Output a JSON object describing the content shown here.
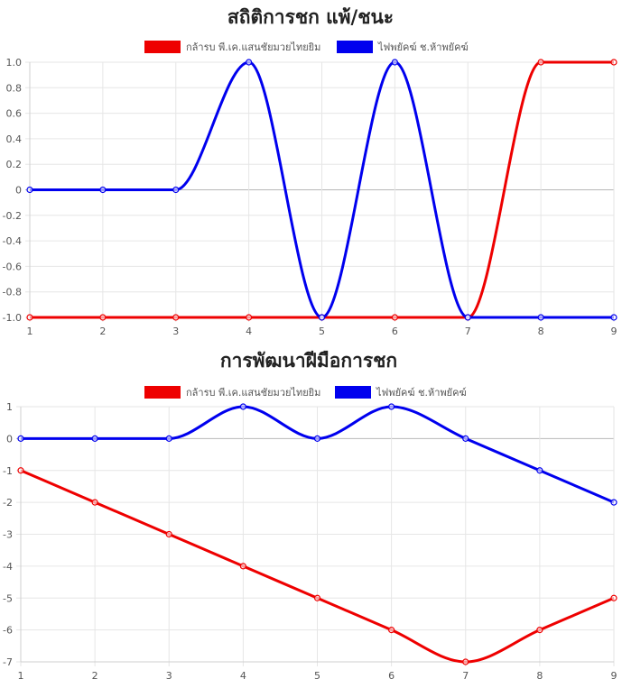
{
  "chart_data": [
    {
      "type": "line",
      "title": "สถิติการชก แพ้/ชนะ",
      "x": [
        1,
        2,
        3,
        4,
        5,
        6,
        7,
        8,
        9
      ],
      "ylim": [
        -1.0,
        1.0
      ],
      "yticks": [
        "1.0",
        "0.8",
        "0.6",
        "0.4",
        "0.2",
        "0",
        "-0.2",
        "-0.4",
        "-0.6",
        "-0.8",
        "-1.0"
      ],
      "ytick_values": [
        1.0,
        0.8,
        0.6,
        0.4,
        0.2,
        0,
        -0.2,
        -0.4,
        -0.6,
        -0.8,
        -1.0
      ],
      "grid": true,
      "legend_position": "top-center",
      "series": [
        {
          "name": "กล้ารบ พี.เค.แสนชัยมวยไทยยิม",
          "color": "#ee0000",
          "values": [
            -1,
            -1,
            -1,
            -1,
            -1,
            -1,
            -1,
            1,
            1
          ]
        },
        {
          "name": "ไฟพยัคฆ์ ช.ห้าพยัคฆ์",
          "color": "#0000ee",
          "values": [
            0,
            0,
            0,
            1,
            -1,
            1,
            -1,
            -1,
            -1
          ]
        }
      ]
    },
    {
      "type": "line",
      "title": "การพัฒนาฝีมือการชก",
      "x": [
        1,
        2,
        3,
        4,
        5,
        6,
        7,
        8,
        9
      ],
      "ylim": [
        -7,
        1
      ],
      "yticks": [
        "1",
        "0",
        "-1",
        "-2",
        "-3",
        "-4",
        "-5",
        "-6",
        "-7"
      ],
      "ytick_values": [
        1,
        0,
        -1,
        -2,
        -3,
        -4,
        -5,
        -6,
        -7
      ],
      "grid": true,
      "legend_position": "top-center",
      "series": [
        {
          "name": "กล้ารบ พี.เค.แสนชัยมวยไทยยิม",
          "color": "#ee0000",
          "values": [
            -1,
            -2,
            -3,
            -4,
            -5,
            -6,
            -7,
            -6,
            -5
          ]
        },
        {
          "name": "ไฟพยัคฆ์ ช.ห้าพยัคฆ์",
          "color": "#0000ee",
          "values": [
            0,
            0,
            0,
            1,
            0,
            1,
            0,
            -1,
            -2
          ]
        }
      ]
    }
  ]
}
